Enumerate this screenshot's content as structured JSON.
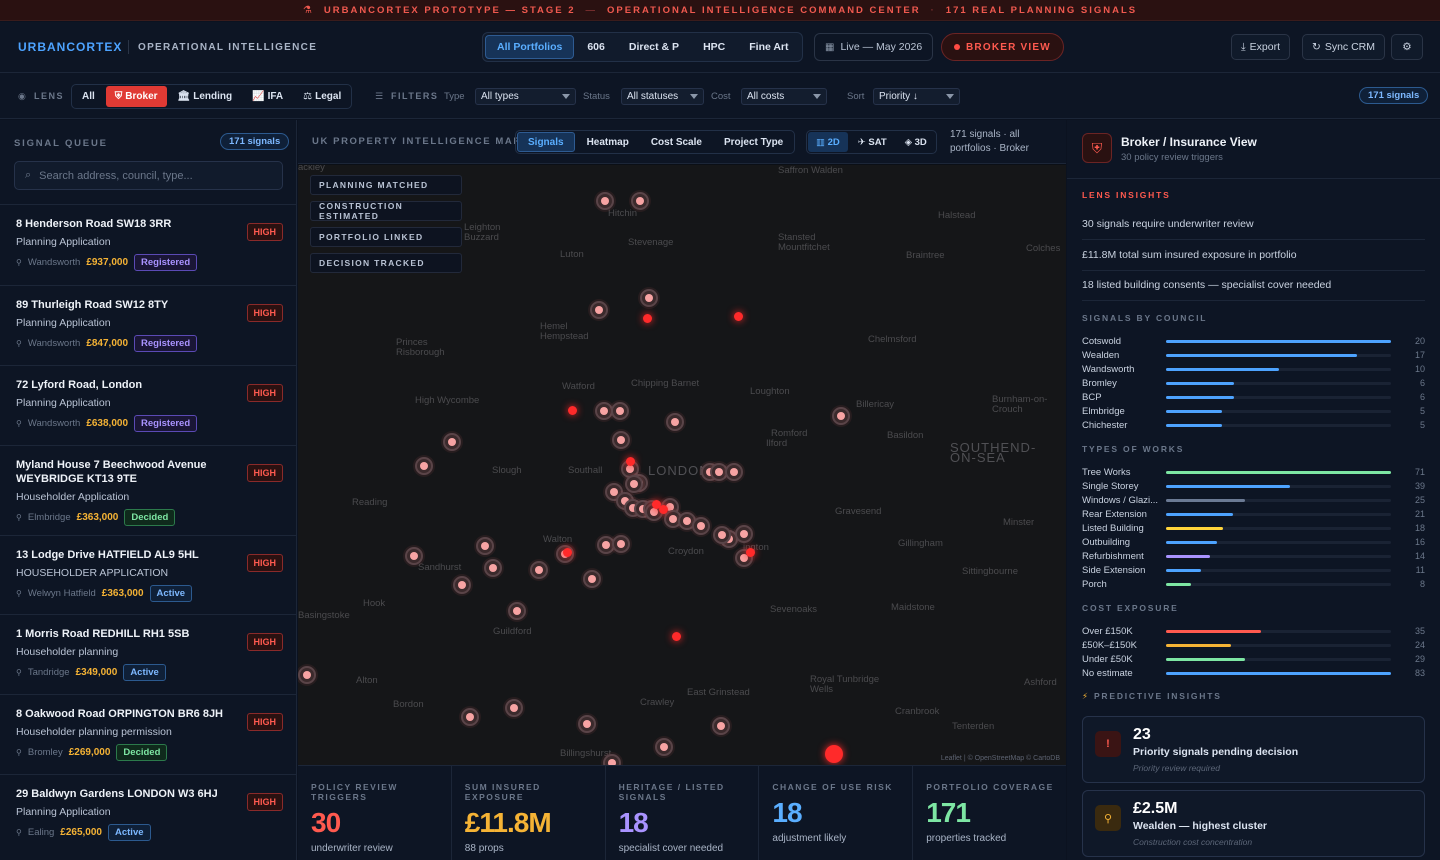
{
  "banner": {
    "part1": "URBANCORTEX PROTOTYPE — STAGE 2",
    "part2": "OPERATIONAL INTELLIGENCE COMMAND CENTER",
    "part3": "171 REAL PLANNING SIGNALS"
  },
  "header": {
    "logo": "URBANCORTEX",
    "subtitle": "OPERATIONAL INTELLIGENCE",
    "portfolios": [
      "All Portfolios",
      "606",
      "Direct & P",
      "HPC",
      "Fine Art"
    ],
    "live": "Live — May 2026",
    "broker_view": "BROKER VIEW",
    "export": "Export",
    "sync": "Sync CRM"
  },
  "filters": {
    "lens_label": "LENS",
    "lenses": [
      "All",
      "Broker",
      "Lending",
      "IFA",
      "Legal"
    ],
    "filters_label": "FILTERS",
    "type_label": "Type",
    "type_value": "All types",
    "status_label": "Status",
    "status_value": "All statuses",
    "cost_label": "Cost",
    "cost_value": "All costs",
    "sort_label": "Sort",
    "sort_value": "Priority ↓",
    "signals_pill": "171 signals"
  },
  "queue": {
    "title": "SIGNAL QUEUE",
    "count": "171 signals",
    "search_placeholder": "Search address, council, type...",
    "items": [
      {
        "address": "8 Henderson Road SW18 3RR",
        "type": "Planning Application",
        "council": "Wandsworth",
        "value": "£937,000",
        "status": "Registered",
        "priority": "HIGH"
      },
      {
        "address": "89 Thurleigh Road SW12 8TY",
        "type": "Planning Application",
        "council": "Wandsworth",
        "value": "£847,000",
        "status": "Registered",
        "priority": "HIGH"
      },
      {
        "address": "72 Lyford Road, London",
        "type": "Planning Application",
        "council": "Wandsworth",
        "value": "£638,000",
        "status": "Registered",
        "priority": "HIGH"
      },
      {
        "address": "Myland House 7 Beechwood Avenue WEYBRIDGE KT13 9TE",
        "type": "Householder Application",
        "council": "Elmbridge",
        "value": "£363,000",
        "status": "Decided",
        "priority": "HIGH"
      },
      {
        "address": "13 Lodge Drive HATFIELD AL9 5HL",
        "type": "HOUSEHOLDER APPLICATION",
        "council": "Welwyn Hatfield",
        "value": "£363,000",
        "status": "Active",
        "priority": "HIGH"
      },
      {
        "address": "1 Morris Road REDHILL RH1 5SB",
        "type": "Householder planning",
        "council": "Tandridge",
        "value": "£349,000",
        "status": "Active",
        "priority": "HIGH"
      },
      {
        "address": "8 Oakwood Road ORPINGTON BR6 8JH",
        "type": "Householder planning permission",
        "council": "Bromley",
        "value": "£269,000",
        "status": "Decided",
        "priority": "HIGH"
      },
      {
        "address": "29 Baldwyn Gardens LONDON W3 6HJ",
        "type": "Planning Application",
        "council": "Ealing",
        "value": "£265,000",
        "status": "Active",
        "priority": "HIGH"
      }
    ]
  },
  "map": {
    "title": "UK PROPERTY INTELLIGENCE MAP",
    "tabs": [
      "Signals",
      "Heatmap",
      "Cost Scale",
      "Project Type"
    ],
    "views": [
      "2D",
      "SAT",
      "3D"
    ],
    "count_text": "171 signals · all portfolios · Broker",
    "legend": [
      "PLANNING MATCHED",
      "CONSTRUCTION ESTIMATED",
      "PORTFOLIO LINKED",
      "DECISION TRACKED"
    ],
    "attribution": "Leaflet | © OpenStreetMap © CartoDB",
    "towns": [
      "Saffron Walden",
      "Hitchin",
      "Halstead",
      "Leighton Buzzard",
      "Stevenage",
      "Stansted Mountfitchet",
      "Braintree",
      "Colches",
      "Luton",
      "Hemel Hempstead",
      "Chelmsford",
      "Princes Risborough",
      "Watford",
      "Chipping Barnet",
      "Loughton",
      "High Wycombe",
      "Billericay",
      "Burnham-on-Crouch",
      "Romford",
      "Ilford",
      "Basildon",
      "SOUTHEND-ON-SEA",
      "Slough",
      "Southall",
      "LONDON",
      "Reading",
      "Gravesend",
      "Minster",
      "Walton",
      "Croydon",
      "Gillingham",
      "Sandhurst",
      "Sittingbourne",
      "Basingstoke",
      "Hook",
      "Sevenoaks",
      "Maidstone",
      "Guildford",
      "Alton",
      "Ashford",
      "Royal Tunbridge Wells",
      "East Grinstead",
      "Bordon",
      "Crawley",
      "Cranbrook",
      "Tenterden",
      "Billingshurst",
      "ackley",
      "ington"
    ]
  },
  "kpis": [
    {
      "label": "POLICY REVIEW TRIGGERS",
      "value": "30",
      "sub": "underwriter review",
      "color": "#ff5a4f"
    },
    {
      "label": "SUM INSURED EXPOSURE",
      "value": "£11.8M",
      "sub": "88 props",
      "color": "#f5b335"
    },
    {
      "label": "HERITAGE / LISTED SIGNALS",
      "value": "18",
      "sub": "specialist cover needed",
      "color": "#a993ff"
    },
    {
      "label": "CHANGE OF USE RISK",
      "value": "18",
      "sub": "adjustment likely",
      "color": "#5aaeff"
    },
    {
      "label": "PORTFOLIO COVERAGE",
      "value": "171",
      "sub": "properties tracked",
      "color": "#7de6a3"
    }
  ],
  "right": {
    "title": "Broker / Insurance View",
    "subtitle": "30 policy review triggers",
    "insights_label": "LENS INSIGHTS",
    "insights": [
      "30 signals require underwriter review",
      "£11.8M total sum insured exposure in portfolio",
      "18 listed building consents — specialist cover needed"
    ],
    "council_label": "SIGNALS BY COUNCIL",
    "councils": [
      {
        "name": "Cotswold",
        "value": 20
      },
      {
        "name": "Wealden",
        "value": 17
      },
      {
        "name": "Wandsworth",
        "value": 10
      },
      {
        "name": "Bromley",
        "value": 6
      },
      {
        "name": "BCP",
        "value": 6
      },
      {
        "name": "Elmbridge",
        "value": 5
      },
      {
        "name": "Chichester",
        "value": 5
      }
    ],
    "works_label": "TYPES OF WORKS",
    "works": [
      {
        "name": "Tree Works",
        "value": 71,
        "color": "#7de6a3"
      },
      {
        "name": "Single Storey",
        "value": 39,
        "color": "#4da3ff"
      },
      {
        "name": "Windows / Glazi...",
        "value": 25,
        "color": "#6b7a94"
      },
      {
        "name": "Rear Extension",
        "value": 21,
        "color": "#4da3ff"
      },
      {
        "name": "Listed Building",
        "value": 18,
        "color": "#ffd43b"
      },
      {
        "name": "Outbuilding",
        "value": 16,
        "color": "#4da3ff"
      },
      {
        "name": "Refurbishment",
        "value": 14,
        "color": "#a993ff"
      },
      {
        "name": "Side Extension",
        "value": 11,
        "color": "#4da3ff"
      },
      {
        "name": "Porch",
        "value": 8,
        "color": "#7de6a3"
      }
    ],
    "cost_label": "COST EXPOSURE",
    "costs": [
      {
        "name": "Over £150K",
        "value": 35,
        "color": "#ff5a4f"
      },
      {
        "name": "£50K–£150K",
        "value": 24,
        "color": "#f5b335"
      },
      {
        "name": "Under £50K",
        "value": 29,
        "color": "#7de6a3"
      },
      {
        "name": "No estimate",
        "value": 83,
        "color": "#4da3ff"
      }
    ],
    "predictive_label": "PREDICTIVE INSIGHTS",
    "predictive": [
      {
        "value": "23",
        "label": "Priority signals pending decision",
        "sub": "Priority review required"
      },
      {
        "value": "£2.5M",
        "label": "Wealden — highest cluster",
        "sub": "Construction cost concentration"
      }
    ]
  }
}
